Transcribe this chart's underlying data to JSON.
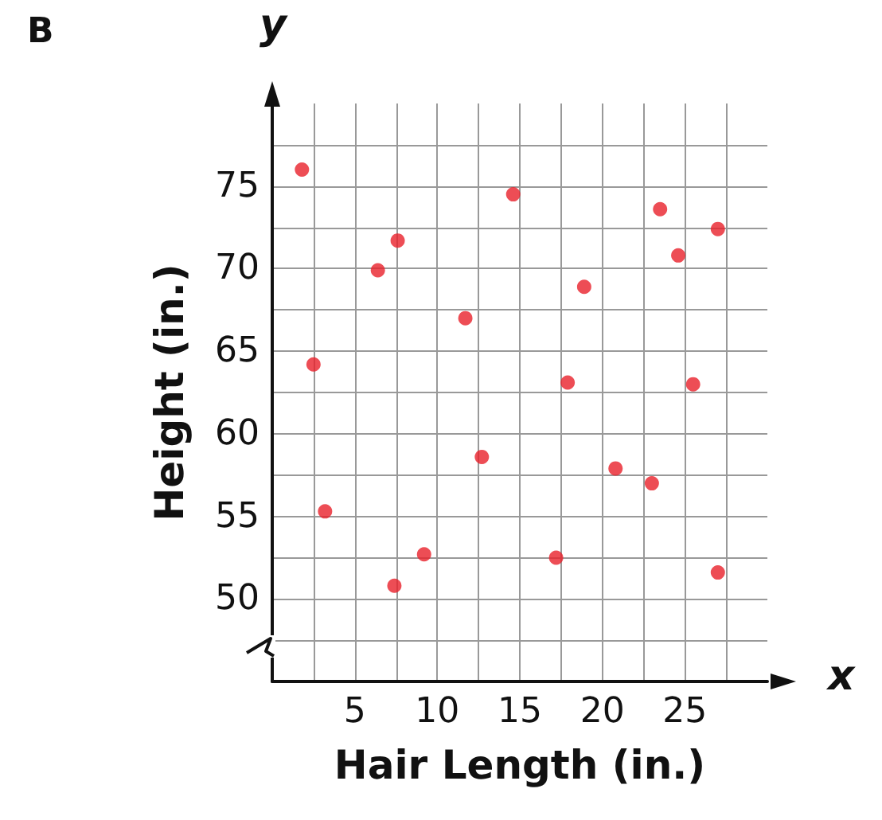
{
  "chart_data": {
    "type": "scatter",
    "title": "B",
    "xlabel": "Hair Length (in.)",
    "ylabel": "Height (in.)",
    "annotations": [
      "y",
      "x"
    ],
    "x": [
      1.8,
      2.5,
      3.2,
      6.4,
      7.6,
      7.4,
      9.2,
      11.7,
      12.7,
      14.6,
      17.2,
      17.9,
      18.9,
      20.8,
      23.0,
      23.5,
      24.6,
      25.5,
      27.0,
      27.0
    ],
    "series": [
      {
        "color": "#e8202a",
        "values": [
          76.0,
          64.2,
          55.3,
          69.9,
          71.7,
          50.8,
          52.7,
          67.0,
          58.6,
          74.5,
          52.5,
          63.1,
          68.9,
          57.9,
          57.0,
          73.6,
          70.8,
          63.0,
          72.4,
          51.6
        ]
      }
    ],
    "xlim": [
      0,
      30
    ],
    "ylim": [
      45,
      80
    ],
    "xticks": [
      {
        "value": 2.5,
        "label": null
      },
      5,
      {
        "value": 7.5,
        "label": null
      },
      10,
      {
        "value": 12.5,
        "label": null
      },
      15,
      {
        "value": 17.5,
        "label": null
      },
      20,
      {
        "value": 22.5,
        "label": null
      },
      25,
      {
        "value": 27.5,
        "label": null
      }
    ],
    "yticks": [
      {
        "value": 47.5,
        "label": null
      },
      50,
      {
        "value": 52.5,
        "label": null
      },
      55,
      {
        "value": 57.5,
        "label": null
      },
      60,
      {
        "value": 62.5,
        "label": null
      },
      65,
      {
        "value": 67.5,
        "label": null
      },
      70,
      {
        "value": 72.5,
        "label": null
      },
      75,
      {
        "value": 77.5,
        "label": null
      }
    ],
    "grid": true,
    "marker": "circle"
  }
}
